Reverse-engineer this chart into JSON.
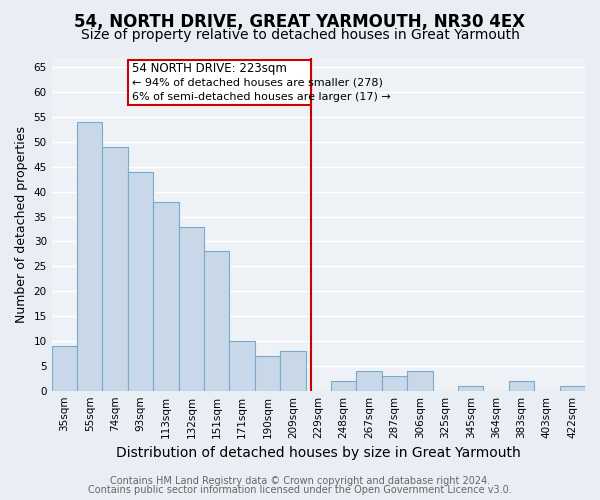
{
  "title": "54, NORTH DRIVE, GREAT YARMOUTH, NR30 4EX",
  "subtitle": "Size of property relative to detached houses in Great Yarmouth",
  "xlabel": "Distribution of detached houses by size in Great Yarmouth",
  "ylabel": "Number of detached properties",
  "bin_labels": [
    "35sqm",
    "55sqm",
    "74sqm",
    "93sqm",
    "113sqm",
    "132sqm",
    "151sqm",
    "171sqm",
    "190sqm",
    "209sqm",
    "229sqm",
    "248sqm",
    "267sqm",
    "287sqm",
    "306sqm",
    "325sqm",
    "345sqm",
    "364sqm",
    "383sqm",
    "403sqm",
    "422sqm"
  ],
  "bar_heights": [
    9,
    54,
    49,
    44,
    38,
    33,
    28,
    10,
    7,
    8,
    0,
    2,
    4,
    3,
    4,
    0,
    1,
    0,
    2,
    0,
    1
  ],
  "bar_color": "#c8d8e8",
  "bar_edge_color": "#7aaac8",
  "fig_bg_color": "#e8eef4",
  "ax_bg_color": "#eef2f7",
  "grid_color": "#ffffff",
  "vline_color": "#cc0000",
  "vline_x_index": 9.72,
  "annotation_title": "54 NORTH DRIVE: 223sqm",
  "annotation_line1": "← 94% of detached houses are smaller (278)",
  "annotation_line2": "6% of semi-detached houses are larger (17) →",
  "ann_box_edge_color": "#cc0000",
  "ann_box_face_color": "#ffffff",
  "ylim": [
    0,
    67
  ],
  "yticks": [
    0,
    5,
    10,
    15,
    20,
    25,
    30,
    35,
    40,
    45,
    50,
    55,
    60,
    65
  ],
  "footer_line1": "Contains HM Land Registry data © Crown copyright and database right 2024.",
  "footer_line2": "Contains public sector information licensed under the Open Government Licence v3.0.",
  "title_fontsize": 12,
  "subtitle_fontsize": 10,
  "xlabel_fontsize": 10,
  "ylabel_fontsize": 9,
  "tick_fontsize": 7.5,
  "ann_fontsize": 8.5,
  "footer_fontsize": 7
}
